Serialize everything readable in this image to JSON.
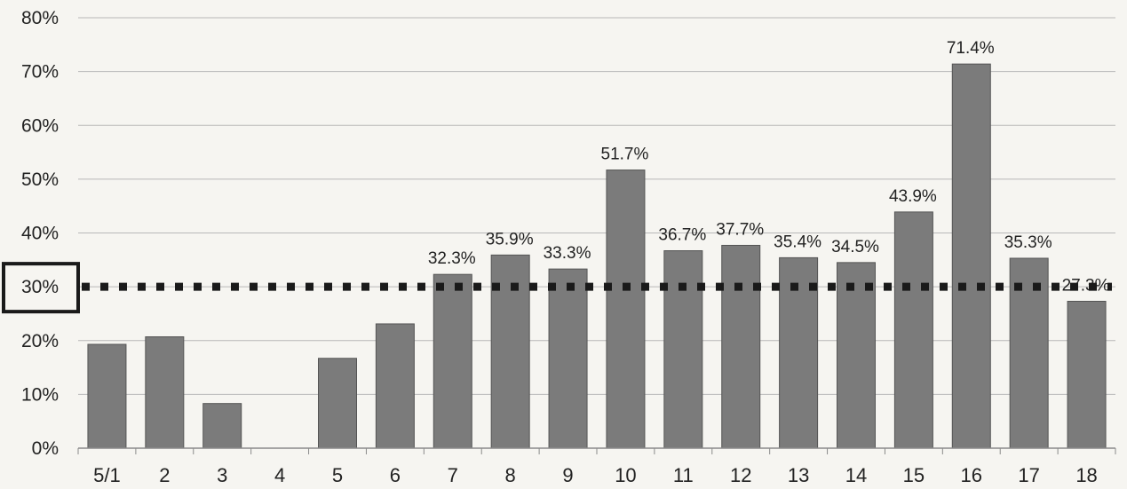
{
  "chart_data": {
    "type": "bar",
    "categories": [
      "5/1",
      "2",
      "3",
      "4",
      "5",
      "6",
      "7",
      "8",
      "9",
      "10",
      "11",
      "12",
      "13",
      "14",
      "15",
      "16",
      "17",
      "18"
    ],
    "values": [
      19.3,
      20.7,
      8.3,
      0,
      16.7,
      23.1,
      32.3,
      35.9,
      33.3,
      51.7,
      36.7,
      37.7,
      35.4,
      34.5,
      43.9,
      71.4,
      35.3,
      27.3
    ],
    "data_labels": [
      "",
      "",
      "",
      "",
      "",
      "",
      "32.3%",
      "35.9%",
      "33.3%",
      "51.7%",
      "36.7%",
      "37.7%",
      "35.4%",
      "34.5%",
      "43.9%",
      "71.4%",
      "35.3%",
      "27.3%"
    ],
    "yticks": [
      "0%",
      "10%",
      "20%",
      "30%",
      "40%",
      "50%",
      "60%",
      "70%",
      "80%"
    ],
    "ylim": [
      0,
      80
    ],
    "grid": true,
    "reference_line": {
      "value": 30,
      "style": "dotted",
      "highlighted_tick": "30%"
    },
    "bar_color": "#7b7b7b",
    "bar_edge": "#555555",
    "title": "",
    "xlabel": "",
    "ylabel": ""
  }
}
